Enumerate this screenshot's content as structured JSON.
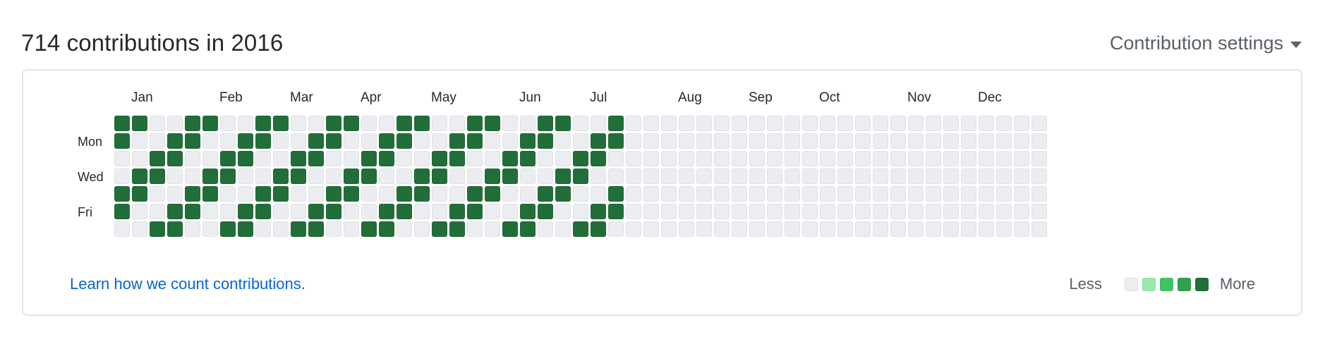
{
  "header": {
    "title": "714 contributions in 2016",
    "settings_label": "Contribution settings"
  },
  "calendar": {
    "months": [
      "Jan",
      "Feb",
      "Mar",
      "Apr",
      "May",
      "Jun",
      "Jul",
      "Aug",
      "Sep",
      "Oct",
      "Nov",
      "Dec"
    ],
    "day_labels": [
      "Mon",
      "Wed",
      "Fri"
    ],
    "weeks": 53,
    "colors": {
      "empty": "#ebedf0",
      "filled": "#216e39"
    },
    "filled_cells": [
      [
        0,
        0
      ],
      [
        0,
        1
      ],
      [
        0,
        4
      ],
      [
        0,
        5
      ],
      [
        1,
        0
      ],
      [
        1,
        3
      ],
      [
        1,
        4
      ],
      [
        2,
        2
      ],
      [
        2,
        3
      ],
      [
        2,
        6
      ],
      [
        3,
        1
      ],
      [
        3,
        2
      ],
      [
        3,
        5
      ],
      [
        3,
        6
      ],
      [
        4,
        0
      ],
      [
        4,
        1
      ],
      [
        4,
        4
      ],
      [
        4,
        5
      ],
      [
        5,
        0
      ],
      [
        5,
        3
      ],
      [
        5,
        4
      ],
      [
        6,
        2
      ],
      [
        6,
        3
      ],
      [
        6,
        6
      ],
      [
        7,
        1
      ],
      [
        7,
        2
      ],
      [
        7,
        5
      ],
      [
        7,
        6
      ],
      [
        8,
        0
      ],
      [
        8,
        1
      ],
      [
        8,
        4
      ],
      [
        8,
        5
      ],
      [
        9,
        0
      ],
      [
        9,
        3
      ],
      [
        9,
        4
      ],
      [
        10,
        2
      ],
      [
        10,
        3
      ],
      [
        10,
        6
      ],
      [
        11,
        1
      ],
      [
        11,
        2
      ],
      [
        11,
        5
      ],
      [
        11,
        6
      ],
      [
        12,
        0
      ],
      [
        12,
        1
      ],
      [
        12,
        4
      ],
      [
        12,
        5
      ],
      [
        13,
        0
      ],
      [
        13,
        3
      ],
      [
        13,
        4
      ],
      [
        14,
        2
      ],
      [
        14,
        3
      ],
      [
        14,
        6
      ],
      [
        15,
        1
      ],
      [
        15,
        2
      ],
      [
        15,
        5
      ],
      [
        15,
        6
      ],
      [
        16,
        0
      ],
      [
        16,
        1
      ],
      [
        16,
        4
      ],
      [
        16,
        5
      ],
      [
        17,
        0
      ],
      [
        17,
        3
      ],
      [
        17,
        4
      ],
      [
        18,
        2
      ],
      [
        18,
        3
      ],
      [
        18,
        6
      ],
      [
        19,
        1
      ],
      [
        19,
        2
      ],
      [
        19,
        5
      ],
      [
        19,
        6
      ],
      [
        20,
        0
      ],
      [
        20,
        1
      ],
      [
        20,
        4
      ],
      [
        20,
        5
      ],
      [
        21,
        0
      ],
      [
        21,
        3
      ],
      [
        21,
        4
      ],
      [
        22,
        2
      ],
      [
        22,
        3
      ],
      [
        22,
        6
      ],
      [
        23,
        1
      ],
      [
        23,
        2
      ],
      [
        23,
        5
      ],
      [
        23,
        6
      ],
      [
        24,
        0
      ],
      [
        24,
        1
      ],
      [
        24,
        4
      ],
      [
        24,
        5
      ],
      [
        25,
        0
      ],
      [
        25,
        3
      ],
      [
        25,
        4
      ],
      [
        26,
        2
      ],
      [
        26,
        3
      ],
      [
        26,
        6
      ],
      [
        27,
        1
      ],
      [
        27,
        2
      ],
      [
        27,
        5
      ],
      [
        27,
        6
      ],
      [
        28,
        0
      ],
      [
        28,
        1
      ],
      [
        28,
        4
      ],
      [
        28,
        5
      ]
    ]
  },
  "footer": {
    "learn_link": "Learn how we count contributions.",
    "legend_less": "Less",
    "legend_more": "More",
    "legend_colors": [
      "#ebedf0",
      "#9be9a8",
      "#40c463",
      "#30a14e",
      "#216e39"
    ]
  }
}
